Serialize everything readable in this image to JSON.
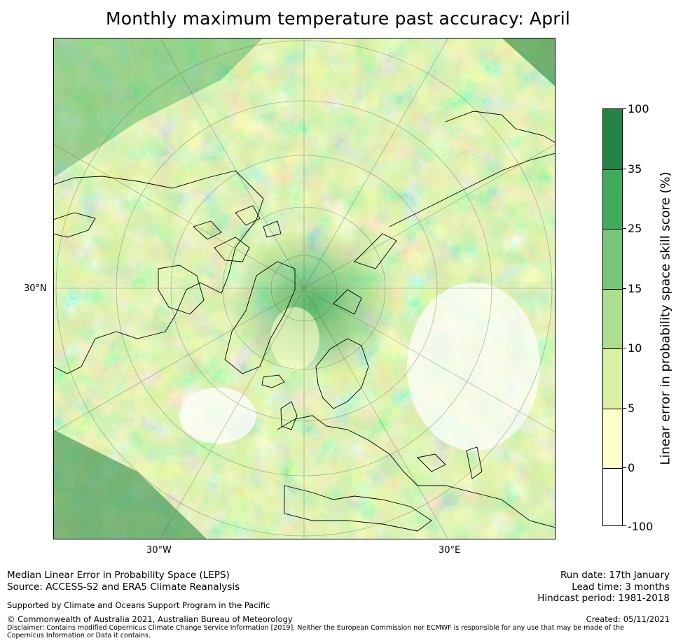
{
  "title": "Monthly maximum temperature past accuracy: April",
  "map": {
    "lat_label": "30°N",
    "lon_labels": {
      "west": "30°W",
      "east": "30°E"
    }
  },
  "colorbar": {
    "title": "Linear error in probability space skill score (%)",
    "tick_labels": [
      "100",
      "35",
      "25",
      "15",
      "10",
      "5",
      "0",
      "-100"
    ],
    "bins": [
      {
        "from": "35",
        "to": "100",
        "color": "#238443"
      },
      {
        "from": "25",
        "to": "35",
        "color": "#41ab5d"
      },
      {
        "from": "15",
        "to": "25",
        "color": "#78c679"
      },
      {
        "from": "10",
        "to": "15",
        "color": "#addd8e"
      },
      {
        "from": "5",
        "to": "10",
        "color": "#d9f0a3"
      },
      {
        "from": "0",
        "to": "5",
        "color": "#ffffcc"
      },
      {
        "from": "-100",
        "to": "0",
        "color": "#ffffff"
      }
    ]
  },
  "footer": {
    "left": {
      "line1": "Median Linear Error in Probability Space (LEPS)",
      "line2": "Source: ACCESS-S2 and ERA5 Climate Reanalysis",
      "support": "Supported by Climate and Oceans Support Program in the Pacific",
      "copyright": "© Commonwealth of Australia 2021, Australian Bureau of Meteorology",
      "disclaimer": "Disclaimer: Contains modified Copernicus Climate Change Service Information [2019]. Neither the European Commission nor ECMWF is responsible for any use that may be made of the Copernicus Information or Data it contains."
    },
    "right": {
      "run_date": "Run date: 17th January",
      "lead_time": "Lead time: 3 months",
      "hindcast": "Hindcast period: 1981-2018",
      "created": "Created: 05/11/2021"
    }
  }
}
